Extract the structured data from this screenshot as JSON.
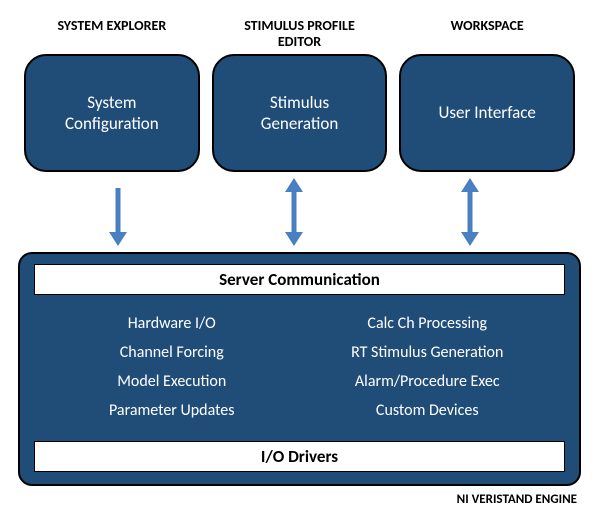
{
  "colors": {
    "box_fill": "#1f4d78",
    "box_border": "#000000",
    "arrow": "#4a7fc1",
    "background": "#ffffff",
    "text_light": "#ffffff",
    "text_dark": "#000000"
  },
  "top": {
    "cols": [
      {
        "header": "SYSTEM EXPLORER",
        "box": "System\nConfiguration"
      },
      {
        "header": "STIMULUS PROFILE\nEDITOR",
        "box": "Stimulus\nGeneration"
      },
      {
        "header": "WORKSPACE",
        "box": "User Interface"
      }
    ]
  },
  "arrows": [
    {
      "left_pct": 17,
      "type": "down"
    },
    {
      "left_pct": 49,
      "type": "bi"
    },
    {
      "left_pct": 81,
      "type": "bi"
    }
  ],
  "engine": {
    "top_band": "Server Communication",
    "left_features": [
      "Hardware I/O",
      "Channel Forcing",
      "Model  Execution",
      "Parameter Updates"
    ],
    "right_features": [
      "Calc Ch Processing",
      "RT Stimulus Generation",
      "Alarm/Procedure Exec",
      "Custom Devices"
    ],
    "bottom_band": "I/O Drivers",
    "label": "NI VERISTAND ENGINE"
  }
}
